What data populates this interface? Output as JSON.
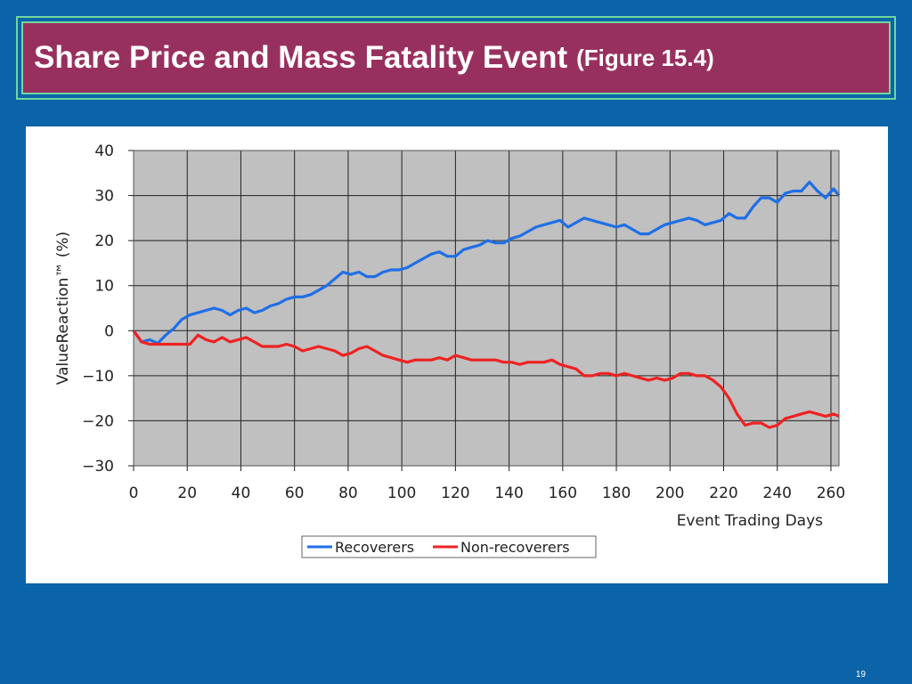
{
  "slide": {
    "title": "Share Price and Mass Fatality Event",
    "title_suffix": "(Figure 15.4)",
    "page_number": "19",
    "colors": {
      "background": "#0b64a8",
      "title_bar": "#98305f",
      "title_border": "#6fd79d"
    }
  },
  "chart_data": {
    "type": "line",
    "title": "",
    "xlabel": "Event Trading Days",
    "ylabel": "ValueReaction™ (%)",
    "xlim": [
      0,
      263
    ],
    "ylim": [
      -30,
      40
    ],
    "x_ticks": [
      "0",
      "20",
      "40",
      "60",
      "80",
      "100",
      "120",
      "140",
      "160",
      "180",
      "200",
      "220",
      "240",
      "260"
    ],
    "y_ticks": [
      "40",
      "30",
      "20",
      "10",
      "0",
      "−10",
      "−20",
      "−30"
    ],
    "grid": true,
    "legend_position": "bottom-center",
    "plot_background": "#c0c0c0",
    "series": [
      {
        "name": "Recoverers",
        "color": "#1f6fe6",
        "x": [
          0,
          3,
          6,
          9,
          12,
          15,
          18,
          21,
          24,
          27,
          30,
          33,
          36,
          39,
          42,
          45,
          48,
          51,
          54,
          57,
          60,
          63,
          66,
          69,
          72,
          75,
          78,
          81,
          84,
          87,
          90,
          93,
          96,
          99,
          102,
          105,
          108,
          111,
          114,
          117,
          120,
          123,
          126,
          129,
          132,
          135,
          138,
          141,
          144,
          147,
          150,
          153,
          156,
          159,
          162,
          165,
          168,
          171,
          174,
          177,
          180,
          183,
          186,
          189,
          192,
          195,
          198,
          201,
          204,
          207,
          210,
          213,
          216,
          219,
          222,
          225,
          228,
          231,
          234,
          237,
          240,
          243,
          246,
          249,
          252,
          255,
          258,
          261,
          263
        ],
        "y": [
          0,
          -2.5,
          -2,
          -2.8,
          -1,
          0.5,
          2.5,
          3.5,
          4,
          4.5,
          5,
          4.5,
          3.5,
          4.5,
          5,
          4,
          4.5,
          5.5,
          6,
          7,
          7.5,
          7.5,
          8,
          9,
          10,
          11.5,
          13,
          12.5,
          13,
          12,
          12,
          13,
          13.5,
          13.5,
          14,
          15,
          16,
          17,
          17.5,
          16.5,
          16.5,
          18,
          18.5,
          19,
          20,
          19.5,
          19.5,
          20.5,
          21,
          22,
          23,
          23.5,
          24,
          24.5,
          23,
          24,
          25,
          24.5,
          24,
          23.5,
          23,
          23.5,
          22.5,
          21.5,
          21.5,
          22.5,
          23.5,
          24,
          24.5,
          25,
          24.5,
          23.5,
          24,
          24.5,
          26,
          25,
          25,
          27.5,
          29.5,
          29.5,
          28.5,
          30.5,
          31,
          31,
          33,
          31,
          29.5,
          31.5,
          30
        ]
      },
      {
        "name": "Non-recoverers",
        "color": "#ee2222",
        "x": [
          0,
          3,
          6,
          9,
          12,
          15,
          18,
          21,
          24,
          27,
          30,
          33,
          36,
          39,
          42,
          45,
          48,
          51,
          54,
          57,
          60,
          63,
          66,
          69,
          72,
          75,
          78,
          81,
          84,
          87,
          90,
          93,
          96,
          99,
          102,
          105,
          108,
          111,
          114,
          117,
          120,
          123,
          126,
          129,
          132,
          135,
          138,
          141,
          144,
          147,
          150,
          153,
          156,
          159,
          162,
          165,
          168,
          171,
          174,
          177,
          180,
          183,
          186,
          189,
          192,
          195,
          198,
          201,
          204,
          207,
          210,
          213,
          216,
          219,
          222,
          225,
          228,
          231,
          234,
          237,
          240,
          243,
          246,
          249,
          252,
          255,
          258,
          261,
          263
        ],
        "y": [
          0,
          -2.5,
          -3,
          -3,
          -3,
          -3,
          -3,
          -3,
          -1,
          -2,
          -2.5,
          -1.5,
          -2.5,
          -2,
          -1.5,
          -2.5,
          -3.5,
          -3.5,
          -3.5,
          -3,
          -3.5,
          -4.5,
          -4,
          -3.5,
          -4,
          -4.5,
          -5.5,
          -5,
          -4,
          -3.5,
          -4.5,
          -5.5,
          -6,
          -6.5,
          -7,
          -6.5,
          -6.5,
          -6.5,
          -6,
          -6.5,
          -5.5,
          -6,
          -6.5,
          -6.5,
          -6.5,
          -6.5,
          -7,
          -7,
          -7.5,
          -7,
          -7,
          -7,
          -6.5,
          -7.5,
          -8,
          -8.5,
          -10,
          -10,
          -9.5,
          -9.5,
          -10,
          -9.5,
          -10,
          -10.5,
          -11,
          -10.5,
          -11,
          -10.5,
          -9.5,
          -9.5,
          -10,
          -10,
          -11,
          -12.5,
          -15,
          -18.5,
          -21,
          -20.5,
          -20.5,
          -21.5,
          -21,
          -19.5,
          -19,
          -18.5,
          -18,
          -18.5,
          -19,
          -18.5,
          -19
        ]
      }
    ]
  }
}
